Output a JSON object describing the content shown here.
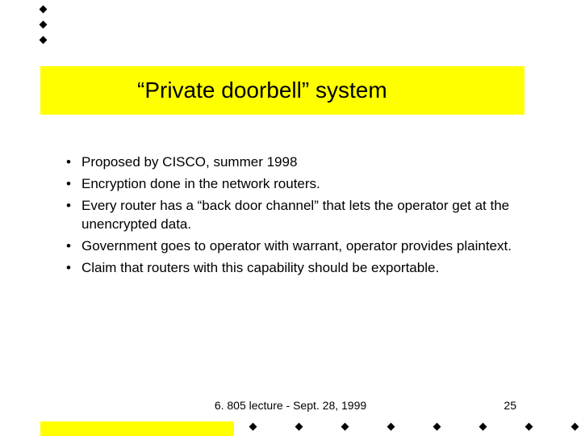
{
  "colors": {
    "accent": "#ffff00",
    "text": "#000000",
    "background": "#ffffff",
    "diamond": "#000000"
  },
  "title": "“Private doorbell” system",
  "title_fontsize": 28,
  "body_fontsize": 17,
  "bullets": [
    "Proposed by CISCO, summer 1998",
    "Encryption done in the network routers.",
    "Every router has a “back door channel” that lets the operator get at the unencrypted data.",
    "Government goes to operator with warrant, operator provides plaintext.",
    "Claim that routers with this capability should be exportable."
  ],
  "footer": "6. 805 lecture - Sept. 28, 1999",
  "page_number": "25",
  "top_diamond_count": 3,
  "bottom_diamond_count": 8
}
